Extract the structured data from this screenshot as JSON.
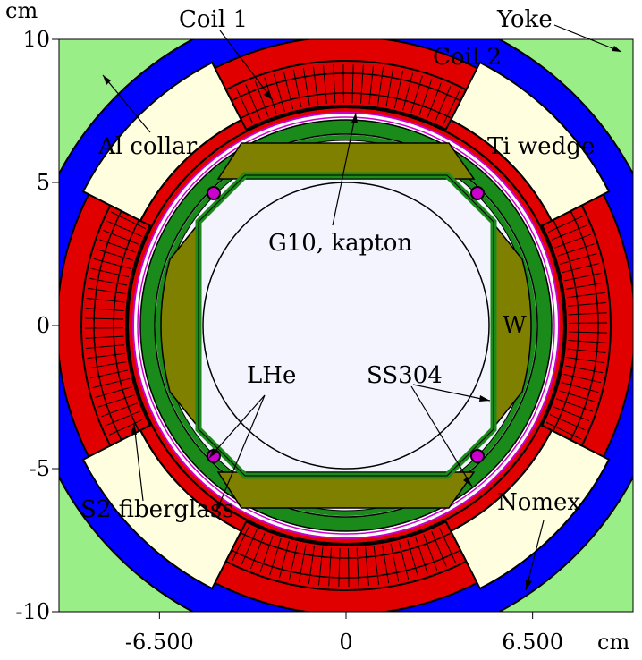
{
  "units": {
    "y": "cm",
    "x": "cm"
  },
  "y_ticks": [
    {
      "label": "10",
      "value": 10
    },
    {
      "label": "5",
      "value": 5
    },
    {
      "label": "0",
      "value": 0
    },
    {
      "label": "-5",
      "value": -5
    },
    {
      "label": "-10",
      "value": -10
    }
  ],
  "x_ticks": [
    {
      "label": "-6.500",
      "value": -6.5
    },
    {
      "label": "0",
      "value": 0
    },
    {
      "label": "6.500",
      "value": 6.5
    }
  ],
  "labels": {
    "coil1": "Coil 1",
    "coil2": "Coil 2",
    "yoke": "Yoke",
    "al_collar": "Al collar",
    "ti_wedge": "Ti wedge",
    "g10_kapton": "G10, kapton",
    "w": "W",
    "lhe": "LHe",
    "ss304": "SS304",
    "s2_fiberglass": "S2 fiberglass",
    "nomex": "Nomex"
  },
  "colors": {
    "yoke": "#0000ff",
    "coil": "#e00000",
    "collar_wedge": "#ffffe0",
    "ss_ring": "#1a8a1a",
    "tungsten": "#808000",
    "lhe": "#f4f4ff",
    "corner": "#99ee88",
    "kapton": "#cc00cc"
  }
}
